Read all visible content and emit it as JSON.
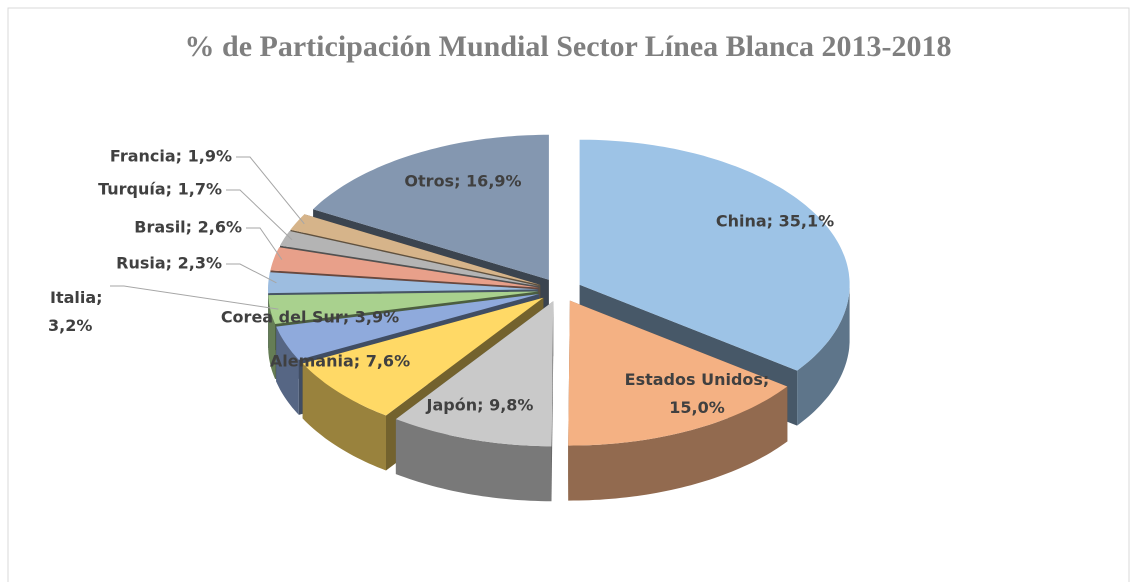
{
  "chart_data": {
    "type": "pie3d",
    "title": "% de Participación Mundial Sector Línea Blanca 2013-2018",
    "categories": [
      "China",
      "Estados Unidos",
      "Japón",
      "Alemania",
      "Corea del Sur",
      "Italia",
      "Rusia",
      "Brasil",
      "Turquía",
      "Francia",
      "Otros"
    ],
    "values": [
      35.1,
      15.0,
      9.8,
      7.6,
      3.9,
      3.2,
      2.3,
      2.6,
      1.7,
      1.9,
      16.9
    ],
    "value_labels": [
      "China; 35,1%",
      "Estados Unidos; 15,0%",
      "Japón; 9,8%",
      "Alemania; 7,6%",
      "Corea del Sur; 3,9%",
      "Italia; 3,2%",
      "Rusia; 2,3%",
      "Brasil; 2,6%",
      "Turquía; 1,7%",
      "Francia; 1,9%",
      "Otros; 16,9%"
    ],
    "colors": [
      "#9dc3e6",
      "#f4b183",
      "#c9c9c9",
      "#ffd966",
      "#8faadc",
      "#a9d18e",
      "#9dbde0",
      "#e8a08a",
      "#b4b4b4",
      "#d6b48a",
      "#8497b0"
    ]
  }
}
